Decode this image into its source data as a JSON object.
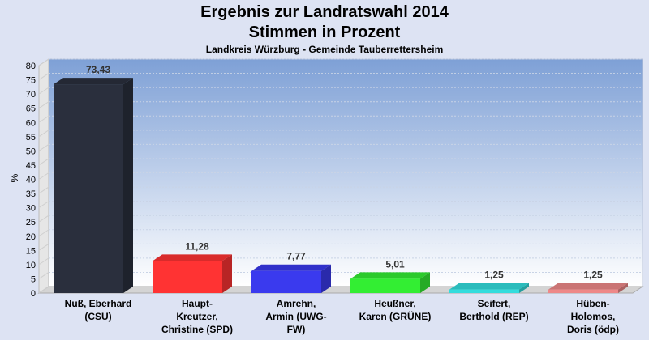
{
  "chart_data": {
    "type": "bar",
    "title": "Ergebnis zur Landratswahl 2014",
    "subtitle": "Stimmen in Prozent",
    "subsubtitle": "Landkreis Würzburg - Gemeinde Tauberrettersheim",
    "ylabel": "%",
    "ylim": [
      0,
      80
    ],
    "yticks": [
      0,
      5,
      10,
      15,
      20,
      25,
      30,
      35,
      40,
      45,
      50,
      55,
      60,
      65,
      70,
      75,
      80
    ],
    "grid": true,
    "categories": [
      [
        "Nuß, Eberhard",
        "(CSU)"
      ],
      [
        "Haupt-",
        "Kreutzer,",
        "Christine (SPD)"
      ],
      [
        "Amrehn,",
        "Armin (UWG-",
        "FW)"
      ],
      [
        "Heußner,",
        "Karen (GRÜNE)"
      ],
      [
        "Seifert,",
        "Berthold (REP)"
      ],
      [
        "Hüben-",
        "Holomos,",
        "Doris (ödp)"
      ]
    ],
    "values": [
      73.43,
      11.28,
      7.77,
      5.01,
      1.25,
      1.25
    ],
    "value_labels": [
      "73,43",
      "11,28",
      "7,77",
      "5,01",
      "1,25",
      "1,25"
    ],
    "colors": [
      "#2a2f3d",
      "#ff3333",
      "#3a3aee",
      "#33ee33",
      "#33dddd",
      "#ee8888"
    ]
  }
}
